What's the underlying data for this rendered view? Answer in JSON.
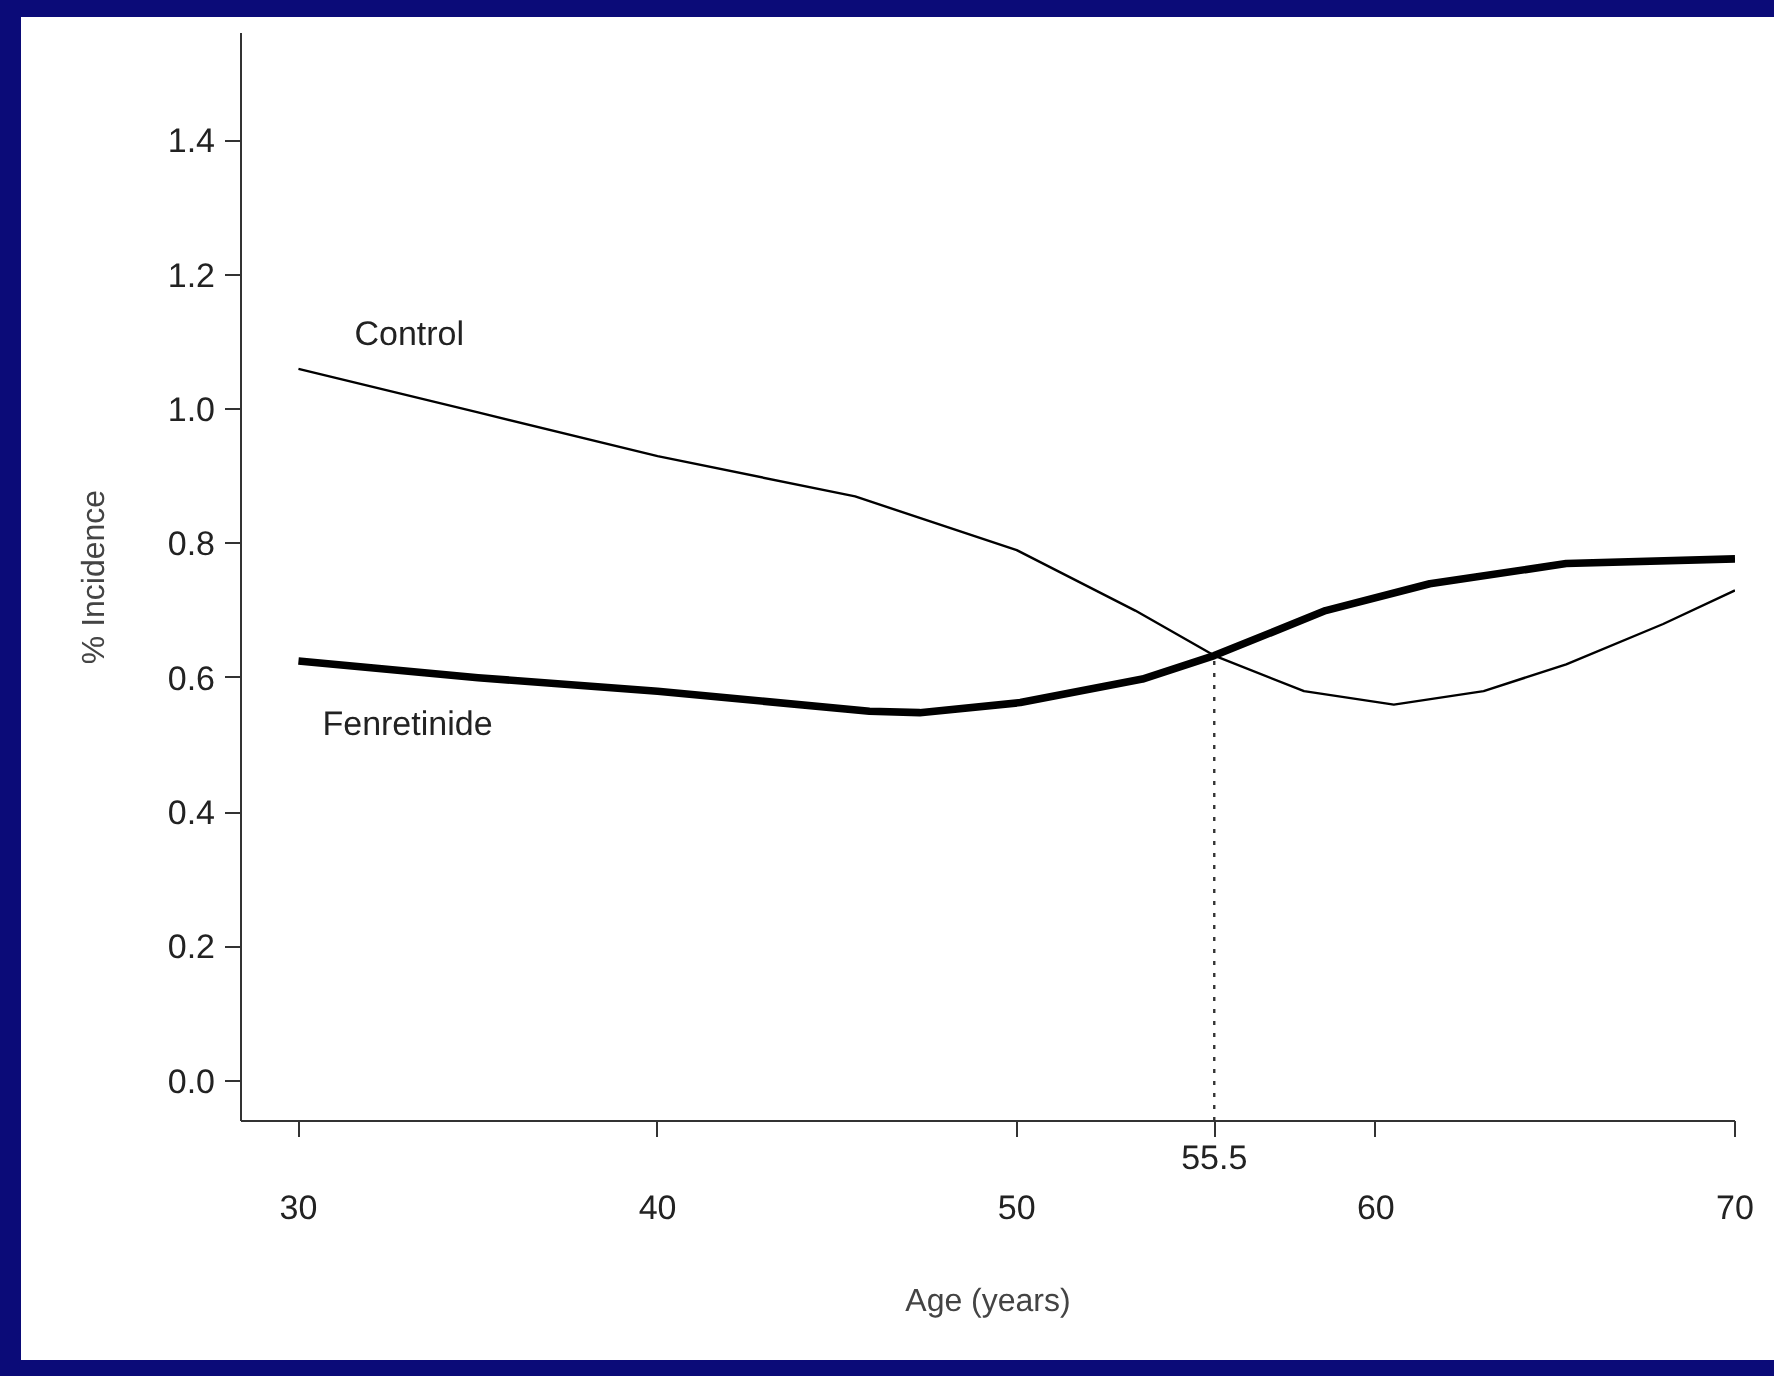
{
  "chart_data": {
    "type": "line",
    "xlabel": "Age (years)",
    "ylabel": "% Incidence",
    "xlim": [
      28.4,
      70
    ],
    "ylim": [
      -0.06,
      1.56
    ],
    "xticks": [
      30,
      40,
      50,
      60,
      70
    ],
    "yticks": [
      {
        "value": 0,
        "label": "0.0"
      },
      0.2,
      0.4,
      0.6,
      0.8,
      {
        "value": 1,
        "label": "1.0"
      },
      1.2,
      1.4
    ],
    "grid": false,
    "series": [
      {
        "name": "Control",
        "color": "#000000",
        "x": [
          30,
          35,
          40,
          45.5,
          50,
          53.3,
          55.5,
          58,
          60.5,
          63,
          65.3,
          68,
          70
        ],
        "values": [
          1.06,
          0.995,
          0.93,
          0.87,
          0.79,
          0.7,
          0.633,
          0.58,
          0.56,
          0.58,
          0.62,
          0.68,
          0.73
        ]
      },
      {
        "name": "Fenretinide",
        "color": "#000000",
        "x": [
          30,
          35,
          40,
          45.9,
          47.3,
          50.1,
          53.5,
          55.5,
          58.6,
          61.5,
          65.3,
          70
        ],
        "values": [
          0.625,
          0.6,
          0.58,
          0.55,
          0.548,
          0.563,
          0.598,
          0.633,
          0.7,
          0.74,
          0.77,
          0.777
        ]
      }
    ],
    "ref_lines": [
      {
        "axis": "x",
        "value": 55.5,
        "label": "55.5",
        "line_style": "dotted"
      }
    ]
  }
}
